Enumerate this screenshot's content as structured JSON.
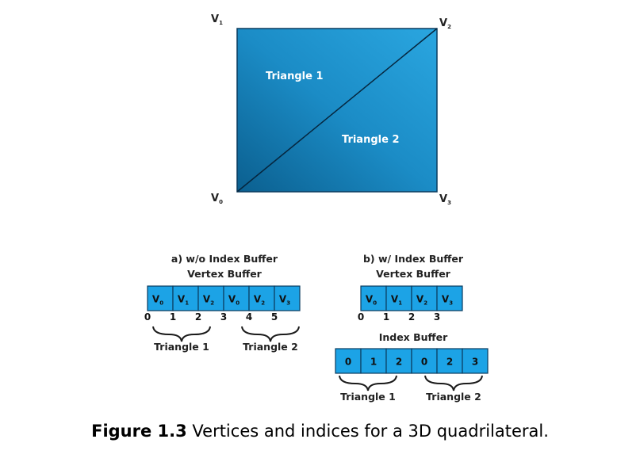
{
  "quad": {
    "vertex_labels": {
      "v0": "V",
      "v1": "V",
      "v2": "V",
      "v3": "V"
    },
    "vertex_subs": {
      "v0": "0",
      "v1": "1",
      "v2": "2",
      "v3": "3"
    },
    "triangle1": "Triangle 1",
    "triangle2": "Triangle 2"
  },
  "left_panel": {
    "title": "a) w/o Index Buffer",
    "subtitle": "Vertex Buffer",
    "cells": [
      "0",
      "1",
      "2",
      "0",
      "2",
      "3"
    ],
    "indices": [
      "0",
      "1",
      "2",
      "3",
      "4",
      "5"
    ],
    "triangle1": "Triangle 1",
    "triangle2": "Triangle 2"
  },
  "right_panel": {
    "title": "b) w/ Index Buffer",
    "subtitle": "Vertex Buffer",
    "cells": [
      "0",
      "1",
      "2",
      "3"
    ],
    "indices": [
      "0",
      "1",
      "2",
      "3"
    ],
    "index_title": "Index Buffer",
    "index_cells": [
      "0",
      "1",
      "2",
      "0",
      "2",
      "3"
    ],
    "triangle1": "Triangle 1",
    "triangle2": "Triangle 2"
  },
  "caption": {
    "label": "Figure 1.3",
    "text": " Vertices and indices for a 3D quadrilateral."
  },
  "colors": {
    "quad_dark": "#0b5f8f",
    "quad_light": "#2aa6e0",
    "cell": "#1ca3e6"
  }
}
